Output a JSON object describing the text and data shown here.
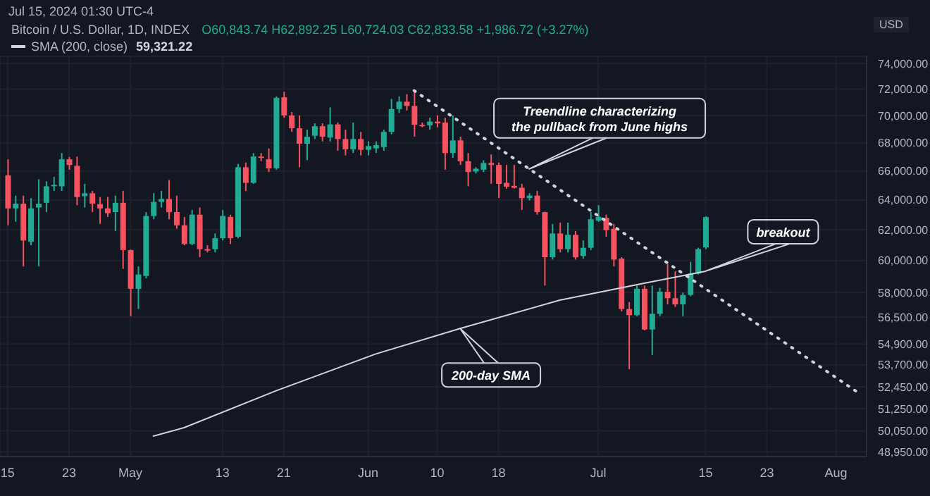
{
  "chart_data": {
    "type": "candlestick",
    "title": "Bitcoin / U.S. Dollar, 1D, INDEX",
    "subtitle": "O60,843.74 H62,892.25 L60,724.03 C62,833.58 +1,986.72 (+3.27%)",
    "ylabel": "USD",
    "x": [
      "2024-04-15",
      "2024-04-16",
      "2024-04-17",
      "2024-04-18",
      "2024-04-19",
      "2024-04-20",
      "2024-04-21",
      "2024-04-22",
      "2024-04-23",
      "2024-04-24",
      "2024-04-25",
      "2024-04-26",
      "2024-04-27",
      "2024-04-28",
      "2024-04-29",
      "2024-04-30",
      "2024-05-01",
      "2024-05-02",
      "2024-05-03",
      "2024-05-04",
      "2024-05-05",
      "2024-05-06",
      "2024-05-07",
      "2024-05-08",
      "2024-05-09",
      "2024-05-10",
      "2024-05-11",
      "2024-05-12",
      "2024-05-13",
      "2024-05-14",
      "2024-05-15",
      "2024-05-16",
      "2024-05-17",
      "2024-05-18",
      "2024-05-19",
      "2024-05-20",
      "2024-05-21",
      "2024-05-22",
      "2024-05-23",
      "2024-05-24",
      "2024-05-25",
      "2024-05-26",
      "2024-05-27",
      "2024-05-28",
      "2024-05-29",
      "2024-05-30",
      "2024-05-31",
      "2024-06-01",
      "2024-06-02",
      "2024-06-03",
      "2024-06-04",
      "2024-06-05",
      "2024-06-06",
      "2024-06-07",
      "2024-06-08",
      "2024-06-09",
      "2024-06-10",
      "2024-06-11",
      "2024-06-12",
      "2024-06-13",
      "2024-06-14",
      "2024-06-15",
      "2024-06-16",
      "2024-06-17",
      "2024-06-18",
      "2024-06-19",
      "2024-06-20",
      "2024-06-21",
      "2024-06-22",
      "2024-06-23",
      "2024-06-24",
      "2024-06-25",
      "2024-06-26",
      "2024-06-27",
      "2024-06-28",
      "2024-06-29",
      "2024-06-30",
      "2024-07-01",
      "2024-07-02",
      "2024-07-03",
      "2024-07-04",
      "2024-07-05",
      "2024-07-06",
      "2024-07-07",
      "2024-07-08",
      "2024-07-09",
      "2024-07-10",
      "2024-07-11",
      "2024-07-12",
      "2024-07-13",
      "2024-07-14",
      "2024-07-15"
    ],
    "ohlc": [
      [
        65690,
        66820,
        62290,
        63420
      ],
      [
        63420,
        64290,
        62530,
        63740
      ],
      [
        63740,
        64290,
        59620,
        61290
      ],
      [
        61220,
        64120,
        60980,
        63420
      ],
      [
        63480,
        65420,
        59620,
        63740
      ],
      [
        63800,
        65270,
        63170,
        64930
      ],
      [
        64930,
        65590,
        64610,
        65030
      ],
      [
        64930,
        67270,
        64610,
        66820
      ],
      [
        66820,
        66990,
        66090,
        66420
      ],
      [
        66360,
        67020,
        63640,
        64190
      ],
      [
        64250,
        65100,
        63480,
        64450
      ],
      [
        64450,
        64610,
        63170,
        63740
      ],
      [
        63710,
        64190,
        62380,
        63420
      ],
      [
        63420,
        64190,
        62850,
        63100
      ],
      [
        63170,
        64290,
        61910,
        63800
      ],
      [
        63800,
        64610,
        59470,
        60670
      ],
      [
        60670,
        60700,
        56550,
        58220
      ],
      [
        58220,
        59620,
        56980,
        59110
      ],
      [
        59020,
        63170,
        58870,
        62910
      ],
      [
        62910,
        64450,
        62690,
        63860
      ],
      [
        63860,
        64610,
        63480,
        64060
      ],
      [
        64060,
        65360,
        62690,
        63170
      ],
      [
        63170,
        64290,
        62060,
        62290
      ],
      [
        62290,
        62850,
        60980,
        61060
      ],
      [
        61060,
        63320,
        60980,
        63000
      ],
      [
        63000,
        63480,
        60210,
        60730
      ],
      [
        60730,
        60980,
        60520,
        60700
      ],
      [
        60730,
        61750,
        60520,
        61440
      ],
      [
        61440,
        63320,
        61290,
        62910
      ],
      [
        62850,
        63000,
        61060,
        61440
      ],
      [
        61540,
        66490,
        61440,
        66260
      ],
      [
        66260,
        66590,
        64610,
        65170
      ],
      [
        65170,
        67270,
        65100,
        67020
      ],
      [
        67020,
        67270,
        66690,
        66990
      ],
      [
        66820,
        67600,
        65920,
        66190
      ],
      [
        66190,
        71450,
        66090,
        71340
      ],
      [
        71380,
        71800,
        69850,
        70020
      ],
      [
        70020,
        70270,
        68800,
        69070
      ],
      [
        69070,
        70020,
        66260,
        67940
      ],
      [
        67940,
        68970,
        66760,
        68450
      ],
      [
        68520,
        69430,
        68280,
        69220
      ],
      [
        69220,
        69430,
        68110,
        68450
      ],
      [
        68390,
        70620,
        68110,
        69350
      ],
      [
        69350,
        69490,
        67430,
        68280
      ],
      [
        68280,
        68970,
        67100,
        67530
      ],
      [
        67530,
        69490,
        67270,
        68280
      ],
      [
        68280,
        68800,
        67100,
        67500
      ],
      [
        67500,
        68110,
        67100,
        67770
      ],
      [
        67600,
        68110,
        67270,
        67840
      ],
      [
        67700,
        68970,
        67430,
        68800
      ],
      [
        68800,
        71260,
        68620,
        70490
      ],
      [
        70490,
        71450,
        70200,
        71050
      ],
      [
        71050,
        71620,
        70380,
        70730
      ],
      [
        70730,
        71800,
        68450,
        69320
      ],
      [
        69320,
        69490,
        69140,
        69250
      ],
      [
        69280,
        69850,
        68970,
        69560
      ],
      [
        69560,
        70020,
        69140,
        69430
      ],
      [
        69490,
        69850,
        66090,
        67270
      ],
      [
        67270,
        70020,
        66920,
        68180
      ],
      [
        68180,
        68450,
        66420,
        66690
      ],
      [
        66690,
        67270,
        64930,
        65920
      ],
      [
        65960,
        66260,
        65820,
        66160
      ],
      [
        66090,
        66760,
        65920,
        66560
      ],
      [
        66560,
        67170,
        65100,
        66420
      ],
      [
        66420,
        66590,
        64120,
        65100
      ],
      [
        65170,
        66420,
        64770,
        64900
      ],
      [
        64960,
        66420,
        64770,
        64830
      ],
      [
        64830,
        65100,
        63320,
        64120
      ],
      [
        64120,
        64450,
        63960,
        64290
      ],
      [
        64290,
        64610,
        63000,
        63170
      ],
      [
        63170,
        63200,
        58420,
        60210
      ],
      [
        60210,
        62380,
        60060,
        61750
      ],
      [
        61750,
        62470,
        60520,
        60730
      ],
      [
        60730,
        62470,
        60520,
        61660
      ],
      [
        61660,
        61910,
        60060,
        60210
      ],
      [
        60300,
        61290,
        60120,
        60820
      ],
      [
        60820,
        63170,
        60670,
        62690
      ],
      [
        62600,
        63640,
        62530,
        62850
      ],
      [
        62780,
        63000,
        61540,
        61970
      ],
      [
        62060,
        62380,
        59620,
        60060
      ],
      [
        60120,
        60210,
        56840,
        56980
      ],
      [
        56980,
        57400,
        53450,
        56610
      ],
      [
        56610,
        58420,
        56550,
        58220
      ],
      [
        58220,
        58420,
        55700,
        55750
      ],
      [
        55750,
        58420,
        54260,
        56690
      ],
      [
        56690,
        58280,
        56550,
        58040
      ],
      [
        58040,
        59760,
        57260,
        57640
      ],
      [
        57640,
        59310,
        57110,
        57260
      ],
      [
        57260,
        57980,
        56550,
        57840
      ],
      [
        57840,
        59910,
        57760,
        59170
      ],
      [
        59170,
        60820,
        59110,
        60730
      ],
      [
        60843.74,
        62892.25,
        60724.03,
        62833.58
      ]
    ],
    "colors": [
      "#f7525f",
      "#22ab94",
      "#f7525f",
      "#22ab94",
      "#22ab94",
      "#22ab94",
      "#22ab94",
      "#22ab94",
      "#f7525f",
      "#f7525f",
      "#22ab94",
      "#f7525f",
      "#f7525f",
      "#f7525f",
      "#22ab94",
      "#f7525f",
      "#f7525f",
      "#22ab94",
      "#22ab94",
      "#22ab94",
      "#22ab94",
      "#f7525f",
      "#f7525f",
      "#f7525f",
      "#22ab94",
      "#f7525f",
      "#f7525f",
      "#22ab94",
      "#22ab94",
      "#f7525f",
      "#22ab94",
      "#f7525f",
      "#22ab94",
      "#f7525f",
      "#f7525f",
      "#22ab94",
      "#f7525f",
      "#f7525f",
      "#f7525f",
      "#22ab94",
      "#22ab94",
      "#f7525f",
      "#22ab94",
      "#f7525f",
      "#f7525f",
      "#22ab94",
      "#f7525f",
      "#22ab94",
      "#22ab94",
      "#22ab94",
      "#22ab94",
      "#22ab94",
      "#f7525f",
      "#f7525f",
      "#f7525f",
      "#22ab94",
      "#f7525f",
      "#f7525f",
      "#22ab94",
      "#f7525f",
      "#f7525f",
      "#22ab94",
      "#22ab94",
      "#f7525f",
      "#f7525f",
      "#f7525f",
      "#f7525f",
      "#f7525f",
      "#22ab94",
      "#f7525f",
      "#f7525f",
      "#22ab94",
      "#f7525f",
      "#22ab94",
      "#f7525f",
      "#22ab94",
      "#22ab94",
      "#22ab94",
      "#f7525f",
      "#f7525f",
      "#f7525f",
      "#f7525f",
      "#22ab94",
      "#f7525f",
      "#22ab94",
      "#22ab94",
      "#f7525f",
      "#f7525f",
      "#22ab94",
      "#22ab94",
      "#22ab94",
      "#22ab94"
    ],
    "series": [
      {
        "type": "line",
        "name": "SMA (200, close)",
        "color": "#d1d4dc",
        "x": [
          "2024-05-04",
          "2024-05-08",
          "2024-05-20",
          "2024-06-02",
          "2024-06-13",
          "2024-06-26",
          "2024-07-07",
          "2024-07-15"
        ],
        "values": [
          49770,
          50220,
          52230,
          54320,
          55810,
          57520,
          58570,
          59321.22
        ]
      },
      {
        "type": "line",
        "color": "#d1d4dc",
        "line_style": "dotted",
        "x": [
          "2024-06-07",
          "2024-08-04"
        ],
        "values": [
          71890,
          52100
        ]
      }
    ],
    "xlim": [
      "2024-04-14",
      "2024-08-05"
    ],
    "xticks": [
      {
        "value": "2024-04-15",
        "label": "15"
      },
      {
        "value": "2024-04-23",
        "label": "23"
      },
      {
        "value": "2024-05-01",
        "label": "May"
      },
      {
        "value": "2024-05-13",
        "label": "13"
      },
      {
        "value": "2024-05-21",
        "label": "21"
      },
      {
        "value": "2024-06-01",
        "label": "Jun"
      },
      {
        "value": "2024-06-10",
        "label": "10"
      },
      {
        "value": "2024-06-18",
        "label": "18"
      },
      {
        "value": "2024-07-01",
        "label": "Jul"
      },
      {
        "value": "2024-07-15",
        "label": "15"
      },
      {
        "value": "2024-07-23",
        "label": "23"
      },
      {
        "value": "2024-08-01",
        "label": "Aug"
      }
    ],
    "ylim": [
      48700,
      74560
    ],
    "log": true,
    "yticks": [
      {
        "value": 48950,
        "label": "48,950.00"
      },
      {
        "value": 50050,
        "label": "50,050.00"
      },
      {
        "value": 51250,
        "label": "51,250.00"
      },
      {
        "value": 52450,
        "label": "52,450.00"
      },
      {
        "value": 53700,
        "label": "53,700.00"
      },
      {
        "value": 54900,
        "label": "54,900.00"
      },
      {
        "value": 56500,
        "label": "56,500.00"
      },
      {
        "value": 58000,
        "label": "58,000.00"
      },
      {
        "value": 60000,
        "label": "60,000.00"
      },
      {
        "value": 62000,
        "label": "62,000.00"
      },
      {
        "value": 64000,
        "label": "64,000.00"
      },
      {
        "value": 66000,
        "label": "66,000.00"
      },
      {
        "value": 68000,
        "label": "68,000.00"
      },
      {
        "value": 70000,
        "label": "70,000.00"
      },
      {
        "value": 72000,
        "label": "72,000.00"
      },
      {
        "value": 74000,
        "label": "74,000.00"
      }
    ],
    "grid": true,
    "legend": "top left",
    "marker": "none",
    "annotations": [
      "Jul 15, 2024 01:30 UTC-4",
      "59,321.22",
      {
        "text": "Treendline characterizing the pullback from June highs",
        "x": "2024-06-22",
        "y": 66140
      },
      "200-day SMA",
      "breakout"
    ]
  }
}
